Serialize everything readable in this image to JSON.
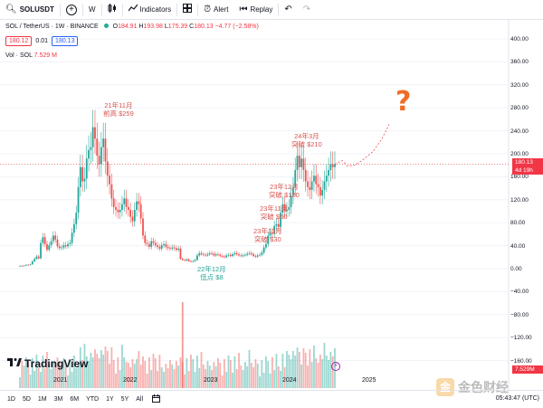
{
  "toolbar": {
    "symbol": "SOLUSDT",
    "interval": "W",
    "indicators_label": "Indicators",
    "alert_label": "Alert",
    "replay_label": "Replay"
  },
  "legend": {
    "pair": "SOL / TetherUS · 1W · BINANCE",
    "open_label": "O",
    "open": "184.91",
    "high_label": "H",
    "high": "193.98",
    "low_label": "L",
    "low": "175.39",
    "close_label": "C",
    "close": "180.13",
    "change": "−4.77 (−2.58%)",
    "sell_price": "180.12",
    "spread": "0.01",
    "buy_price": "180.13",
    "vol_label": "Vol · SOL",
    "vol_value": "7.529 M"
  },
  "price_axis": [
    "400.00",
    "360.00",
    "320.00",
    "280.00",
    "240.00",
    "200.00",
    "160.00",
    "120.00",
    "80.00",
    "40.00",
    "0.00",
    "−40.00",
    "−80.00",
    "−120.00",
    "−160.00"
  ],
  "price_tag": {
    "price": "180.13",
    "countdown": "4d 19h"
  },
  "vol_tag": "7.529M",
  "years": [
    "2021",
    "2022",
    "2023",
    "2024",
    "2025"
  ],
  "annotations": {
    "nov21_date": "21年11月",
    "nov21_text": "前高 $259",
    "dec22_date": "22年12月",
    "dec22_text": "低点 $8",
    "oct23_date": "23年10月",
    "oct23_text": "突破 $30",
    "nov23_date": "23年11月",
    "nov23_text": "突破 $60",
    "dec23_date": "23年12月",
    "dec23_text": "突破 $120",
    "mar24_date": "24年3月",
    "mar24_text": "突破 $210",
    "question": "?"
  },
  "brand": {
    "tradingview": "TradingView",
    "watermark": "金色财经"
  },
  "timeframes": [
    "1D",
    "5D",
    "1M",
    "3M",
    "6M",
    "YTD",
    "1Y",
    "5Y",
    "All"
  ],
  "time": "05:43:47 (UTC)",
  "colors": {
    "up": "#26a69a",
    "down": "#ef5350",
    "accent": "#2962ff",
    "projection": "#e8505b"
  },
  "chart_data": {
    "type": "candlestick",
    "x": [
      "2021",
      "2022",
      "2023",
      "2024",
      "2025"
    ],
    "ylim": [
      -160,
      400
    ],
    "prices_close": [
      1.8,
      1.5,
      2.2,
      3.5,
      3.0,
      4.2,
      9.5,
      14,
      18,
      15,
      42,
      52,
      40,
      30,
      38,
      45,
      55,
      48,
      36,
      33,
      34,
      38,
      36,
      40,
      42,
      60,
      75,
      95,
      140,
      175,
      150,
      155,
      190,
      205,
      210,
      245,
      225,
      195,
      180,
      210,
      225,
      185,
      160,
      145,
      120,
      105,
      100,
      96,
      100,
      110,
      120,
      105,
      100,
      88,
      80,
      100,
      115,
      110,
      85,
      55,
      42,
      40,
      35,
      45,
      42,
      38,
      35,
      32,
      38,
      40,
      35,
      33,
      32,
      34,
      33,
      30,
      32,
      14,
      12,
      11,
      13,
      10,
      9,
      10,
      12,
      20,
      24,
      22,
      21,
      20,
      22,
      24,
      23,
      20,
      22,
      21,
      19,
      18,
      17,
      20,
      21,
      19,
      22,
      24,
      22,
      20,
      19,
      20,
      21,
      23,
      24,
      22,
      19,
      18,
      20,
      21,
      25,
      34,
      40,
      55,
      60,
      58,
      72,
      75,
      70,
      95,
      110,
      98,
      100,
      105,
      125,
      140,
      170,
      195,
      175,
      190,
      170,
      150,
      140,
      135,
      150,
      160,
      145,
      140,
      125,
      135,
      150,
      160,
      170,
      180,
      175,
      180.13
    ],
    "projection": {
      "type": "line",
      "end_estimate": 250
    },
    "volume_last": 7.529
  }
}
